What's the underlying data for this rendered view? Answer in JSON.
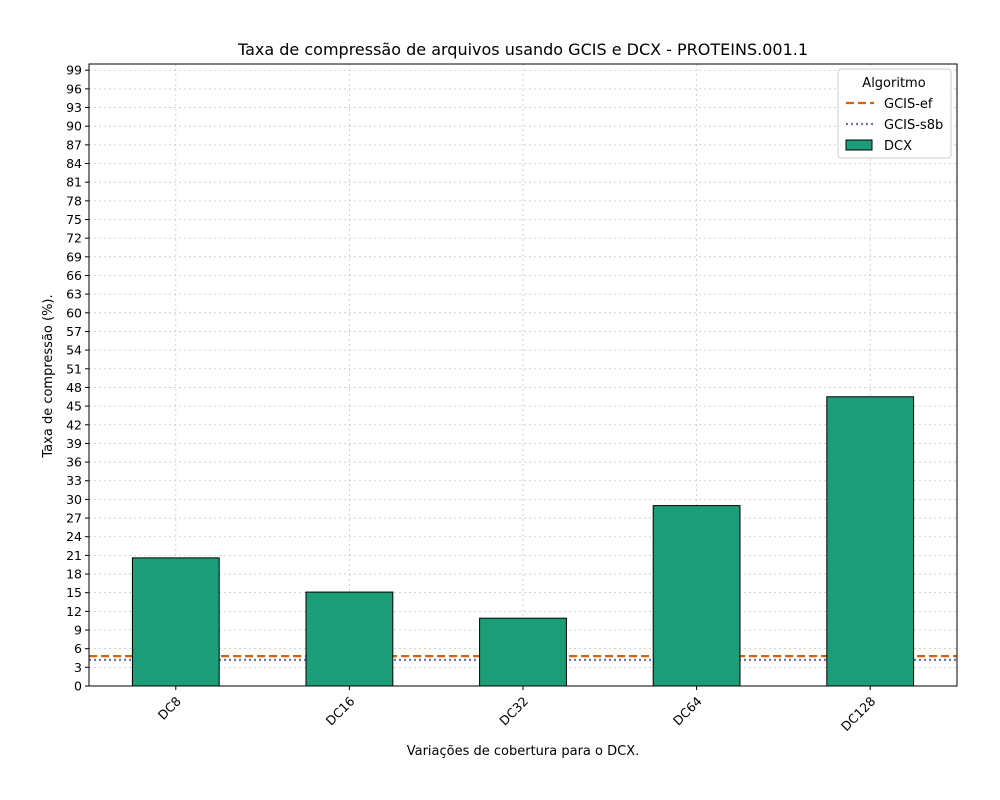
{
  "chart_data": {
    "type": "bar",
    "title": "Taxa de compressão de arquivos usando GCIS e DCX -  PROTEINS.001.1",
    "xlabel": "Variações de cobertura para o DCX.",
    "ylabel": "Taxa de compressão (%).",
    "ylim": [
      0,
      100
    ],
    "yticks": [
      0,
      3,
      6,
      9,
      12,
      15,
      18,
      21,
      24,
      27,
      30,
      33,
      36,
      39,
      42,
      45,
      48,
      51,
      54,
      57,
      60,
      63,
      66,
      69,
      72,
      75,
      78,
      81,
      84,
      87,
      90,
      93,
      96,
      99
    ],
    "categories": [
      "DC8",
      "DC16",
      "DC32",
      "DC64",
      "DC128"
    ],
    "series": [
      {
        "name": "DCX",
        "type": "bar",
        "values": [
          20.6,
          15.1,
          10.9,
          29.0,
          46.5
        ],
        "color": "#1b9e77"
      }
    ],
    "reference_lines": [
      {
        "name": "GCIS-ef",
        "value": 4.8,
        "style": "dashed",
        "color": "#d95f02"
      },
      {
        "name": "GCIS-s8b",
        "value": 4.2,
        "style": "dotted",
        "color": "#7570b3"
      }
    ],
    "legend": {
      "title": "Algoritmo",
      "position": "top-right"
    },
    "grid": true
  }
}
